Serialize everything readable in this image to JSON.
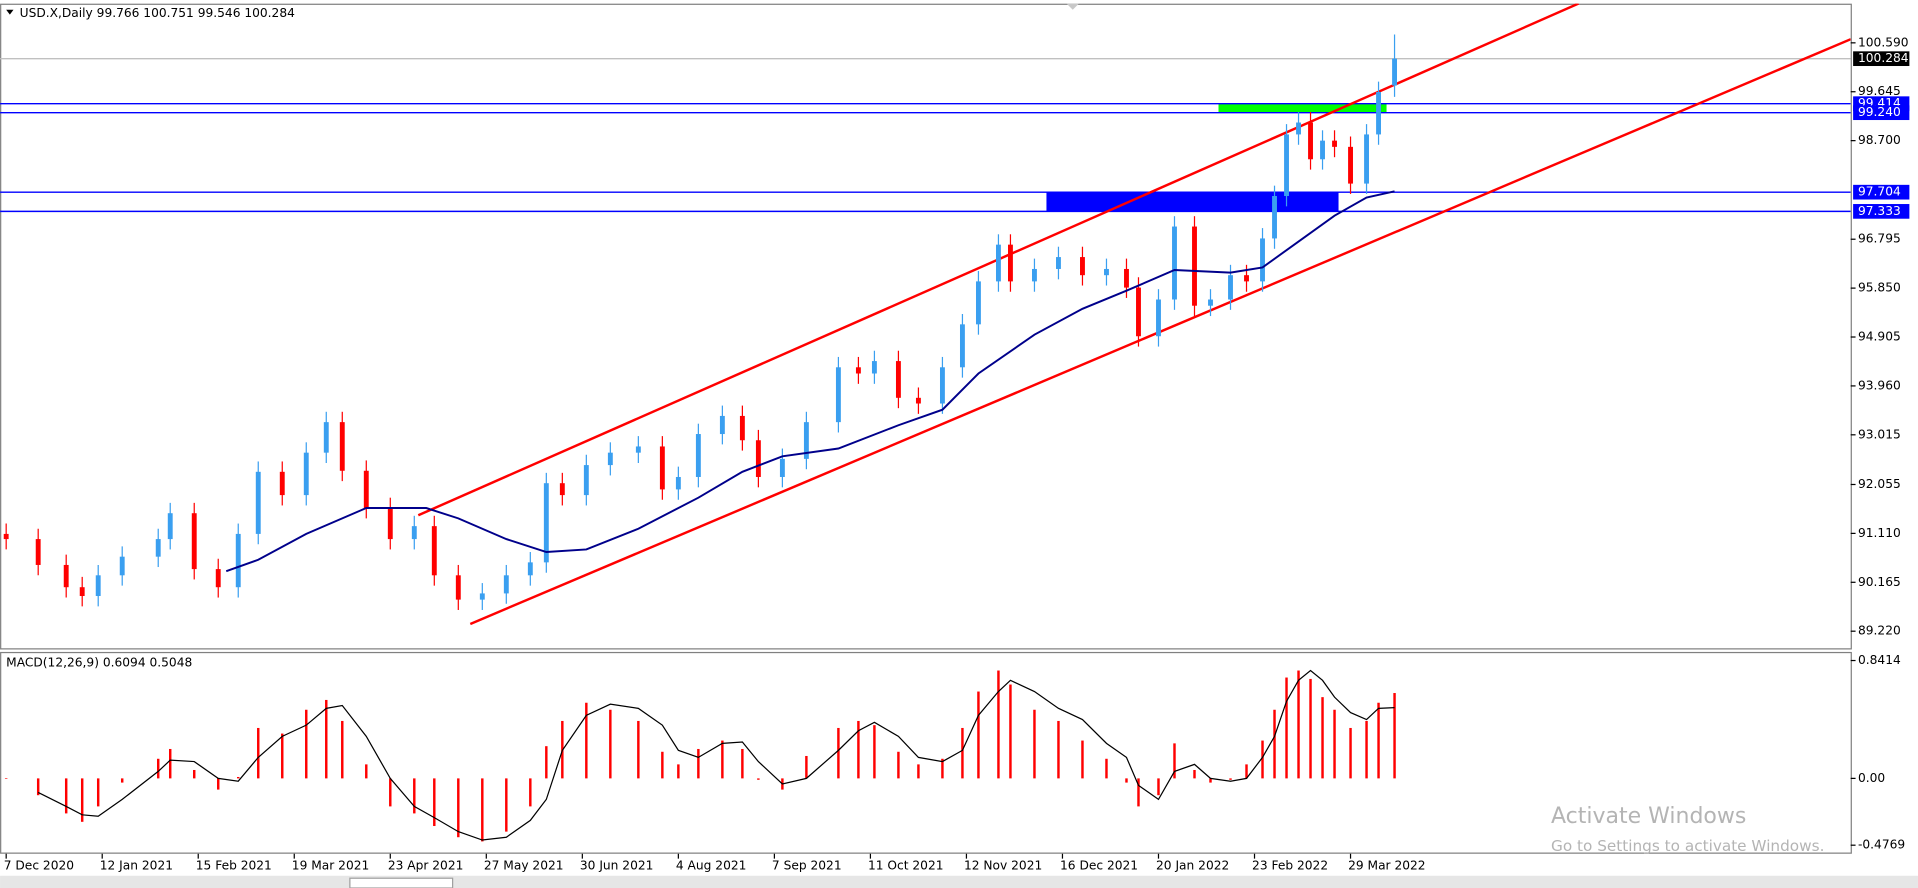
{
  "chart_data": [
    {
      "type": "candlestick",
      "title": "USD.X,Daily  99.766 100.751 99.546 100.284",
      "x": [
        0,
        8,
        15,
        19,
        23,
        29,
        38,
        41,
        47,
        53,
        58,
        63,
        69,
        75,
        80,
        84,
        90,
        96,
        102,
        107,
        113,
        119,
        125,
        131,
        135,
        139,
        145,
        151,
        158,
        164,
        168,
        173,
        179,
        184,
        188,
        194,
        200,
        208,
        213,
        217,
        223,
        228,
        234,
        239,
        243,
        248,
        251,
        257,
        263,
        269,
        275,
        280,
        283,
        288,
        292,
        297,
        301,
        306,
        310,
        314,
        317,
        320,
        323,
        326,
        329,
        332,
        336,
        340,
        343,
        347
      ],
      "open": [
        91.1,
        91.0,
        90.5,
        90.07,
        89.9,
        90.3,
        90.66,
        91.0,
        91.5,
        90.42,
        90.07,
        91.1,
        92.3,
        91.85,
        92.67,
        93.26,
        92.32,
        91.6,
        91.0,
        91.25,
        90.3,
        89.83,
        89.95,
        90.3,
        90.55,
        92.08,
        91.85,
        92.43,
        92.67,
        92.79,
        91.96,
        92.2,
        93.03,
        93.38,
        92.91,
        92.2,
        92.55,
        93.26,
        94.32,
        94.2,
        94.44,
        93.73,
        93.62,
        94.32,
        95.15,
        95.98,
        96.69,
        95.98,
        96.22,
        96.45,
        96.1,
        96.22,
        95.86,
        94.92,
        95.63,
        97.04,
        95.51,
        95.63,
        96.1,
        95.98,
        96.81,
        97.63,
        98.82,
        99.05,
        98.34,
        98.7,
        98.58,
        97.87,
        98.82,
        99.766
      ],
      "high": [
        91.3,
        91.2,
        90.7,
        90.27,
        90.5,
        90.86,
        91.2,
        91.7,
        91.7,
        90.62,
        91.3,
        92.5,
        92.5,
        92.87,
        93.46,
        93.46,
        92.52,
        91.8,
        91.45,
        91.45,
        90.5,
        90.15,
        90.5,
        90.75,
        92.28,
        92.28,
        92.63,
        92.87,
        92.99,
        92.99,
        92.4,
        93.23,
        93.58,
        93.58,
        93.11,
        92.75,
        93.46,
        94.52,
        94.52,
        94.64,
        94.64,
        93.93,
        94.52,
        95.35,
        96.18,
        96.89,
        96.89,
        96.42,
        96.65,
        96.65,
        96.42,
        96.42,
        96.06,
        95.83,
        97.24,
        97.24,
        95.83,
        96.3,
        96.3,
        97.01,
        97.83,
        99.02,
        99.25,
        99.25,
        98.9,
        98.9,
        98.78,
        99.02,
        99.84,
        100.751
      ],
      "low": [
        90.8,
        90.3,
        89.87,
        89.7,
        89.7,
        90.1,
        90.46,
        90.8,
        90.22,
        89.87,
        89.87,
        90.9,
        91.65,
        91.65,
        92.47,
        92.12,
        91.4,
        90.8,
        90.8,
        90.1,
        89.63,
        89.63,
        89.75,
        90.1,
        90.35,
        91.65,
        91.65,
        92.23,
        92.47,
        91.76,
        91.76,
        92.0,
        92.83,
        92.71,
        92.0,
        92.0,
        92.35,
        93.06,
        94.0,
        94.0,
        93.53,
        93.42,
        93.42,
        94.12,
        94.95,
        95.78,
        95.78,
        95.78,
        96.02,
        95.9,
        95.9,
        95.66,
        94.72,
        94.72,
        95.43,
        95.31,
        95.31,
        95.43,
        95.78,
        95.78,
        96.61,
        97.43,
        98.62,
        98.14,
        98.14,
        98.38,
        97.67,
        97.67,
        98.62,
        99.546
      ],
      "close": [
        91.0,
        90.5,
        90.07,
        89.9,
        90.3,
        90.66,
        91.0,
        91.5,
        90.42,
        90.07,
        91.1,
        92.3,
        91.85,
        92.67,
        93.26,
        92.32,
        91.6,
        91.0,
        91.25,
        90.3,
        89.83,
        89.95,
        90.3,
        90.55,
        92.08,
        91.85,
        92.43,
        92.67,
        92.79,
        91.96,
        92.2,
        93.03,
        93.38,
        92.91,
        92.2,
        92.55,
        93.26,
        94.32,
        94.2,
        94.44,
        93.73,
        93.62,
        94.32,
        95.15,
        95.98,
        96.69,
        95.98,
        96.22,
        96.45,
        96.1,
        96.22,
        95.86,
        94.92,
        95.63,
        97.04,
        95.51,
        95.63,
        96.1,
        95.98,
        96.81,
        97.63,
        98.82,
        99.05,
        98.34,
        98.7,
        98.58,
        97.87,
        98.82,
        99.64,
        100.284
      ],
      "up_color": "#3a9ff0",
      "down_color": "#ff0000",
      "ma": {
        "x": [
          55,
          63,
          75,
          90,
          105,
          113,
          125,
          135,
          145,
          158,
          173,
          184,
          194,
          208,
          223,
          234,
          243,
          257,
          269,
          280,
          292,
          306,
          314,
          323,
          332,
          340,
          347
        ],
        "values": [
          90.38,
          90.6,
          91.1,
          91.6,
          91.6,
          91.4,
          91.0,
          90.75,
          90.8,
          91.2,
          91.8,
          92.3,
          92.6,
          92.75,
          93.2,
          93.5,
          94.2,
          94.95,
          95.45,
          95.8,
          96.2,
          96.15,
          96.25,
          96.75,
          97.25,
          97.6,
          97.72
        ],
        "color": "#00008b"
      },
      "trendlines": [
        {
          "x": [
            103,
            393
          ],
          "y": [
            91.46,
            101.35
          ],
          "color": "#ff0000"
        },
        {
          "x": [
            116,
            461
          ],
          "y": [
            89.36,
            100.66
          ],
          "color": "#ff0000"
        }
      ],
      "zones": [
        {
          "x": [
            303,
            345
          ],
          "y": [
            99.24,
            99.414
          ],
          "color": "#00ff00"
        },
        {
          "x": [
            260,
            333
          ],
          "y": [
            97.333,
            97.704
          ],
          "color": "#0000ff"
        }
      ],
      "price_lines": [
        {
          "value": 100.284,
          "line_color": "#c0c0c0",
          "label_color": "#000000"
        },
        {
          "value": 99.414,
          "line_color": "#0000ff",
          "label_color": "#0000ff"
        },
        {
          "value": 99.24,
          "label": "99.240",
          "line_color": "#0000ff",
          "label_color": "#0000ff"
        },
        {
          "value": 97.704,
          "line_color": "#0000ff",
          "label_color": "#0000ff"
        },
        {
          "value": 97.333,
          "line_color": "#0000ff",
          "label_color": "#0000ff"
        }
      ],
      "xlim": [
        -1.53,
        461
      ],
      "ylim": [
        88.89,
        101.347
      ],
      "yticks": [
        {
          "value": 100.59,
          "label": "100.590"
        },
        99.645,
        {
          "value": 98.7,
          "label": "98.700"
        },
        96.795,
        {
          "value": 95.85,
          "label": "95.850"
        },
        94.905,
        {
          "value": 93.96,
          "label": "93.960"
        },
        93.015,
        92.055,
        {
          "value": 91.11,
          "label": "91.110"
        },
        90.165,
        {
          "value": 89.22,
          "label": "89.220"
        }
      ],
      "xticks": [
        {
          "value": 0,
          "label": "7 Dec 2020"
        },
        {
          "value": 24,
          "label": "12 Jan 2021"
        },
        {
          "value": 48,
          "label": "15 Feb 2021"
        },
        {
          "value": 72,
          "label": "19 Mar 2021"
        },
        {
          "value": 96,
          "label": "23 Apr 2021"
        },
        {
          "value": 120,
          "label": "27 May 2021"
        },
        {
          "value": 144,
          "label": "30 Jun 2021"
        },
        {
          "value": 168,
          "label": "4 Aug 2021"
        },
        {
          "value": 192,
          "label": "7 Sep 2021"
        },
        {
          "value": 216,
          "label": "11 Oct 2021"
        },
        {
          "value": 240,
          "label": "12 Nov 2021"
        },
        {
          "value": 264,
          "label": "16 Dec 2021"
        },
        {
          "value": 288,
          "label": "20 Jan 2022"
        },
        {
          "value": 312,
          "label": "23 Feb 2022"
        },
        {
          "value": 336,
          "label": "29 Mar 2022"
        }
      ]
    },
    {
      "type": "macd",
      "title": "MACD(12,26,9) 0.6094 0.5048",
      "x": [
        0,
        8,
        15,
        19,
        23,
        29,
        38,
        41,
        47,
        53,
        58,
        63,
        69,
        75,
        80,
        84,
        90,
        96,
        102,
        107,
        113,
        119,
        125,
        131,
        135,
        139,
        145,
        151,
        158,
        164,
        168,
        173,
        179,
        184,
        188,
        194,
        200,
        208,
        213,
        217,
        223,
        228,
        234,
        239,
        243,
        248,
        251,
        257,
        263,
        269,
        275,
        280,
        283,
        288,
        292,
        297,
        301,
        306,
        310,
        314,
        317,
        320,
        323,
        326,
        329,
        332,
        336,
        340,
        343,
        347
      ],
      "histogram": {
        "color": "#ff0000",
        "values": [
          0,
          -0.12,
          -0.25,
          -0.31,
          -0.2,
          -0.03,
          0.14,
          0.21,
          0.06,
          -0.08,
          0.01,
          0.36,
          0.32,
          0.49,
          0.56,
          0.41,
          0.1,
          -0.2,
          -0.25,
          -0.34,
          -0.42,
          -0.45,
          -0.38,
          -0.2,
          0.23,
          0.41,
          0.54,
          0.49,
          0.41,
          0.19,
          0.1,
          0.21,
          0.27,
          0.21,
          -0.01,
          -0.08,
          0.16,
          0.36,
          0.41,
          0.38,
          0.19,
          0.1,
          0.14,
          0.36,
          0.62,
          0.77,
          0.67,
          0.49,
          0.41,
          0.27,
          0.14,
          -0.03,
          -0.2,
          -0.12,
          0.25,
          0.06,
          -0.03,
          -0.01,
          0.1,
          0.27,
          0.49,
          0.72,
          0.77,
          0.71,
          0.58,
          0.49,
          0.36,
          0.41,
          0.54,
          0.6094
        ]
      },
      "signal": {
        "color": "#000000",
        "values": [
          null,
          -0.1,
          -0.2,
          -0.26,
          -0.27,
          -0.15,
          0.05,
          0.13,
          0.12,
          0.0,
          -0.02,
          0.15,
          0.3,
          0.38,
          0.5,
          0.52,
          0.3,
          0.0,
          -0.2,
          -0.28,
          -0.38,
          -0.44,
          -0.42,
          -0.3,
          -0.15,
          0.2,
          0.45,
          0.53,
          0.5,
          0.38,
          0.2,
          0.15,
          0.25,
          0.26,
          0.12,
          -0.04,
          0.0,
          0.2,
          0.34,
          0.4,
          0.3,
          0.15,
          0.12,
          0.2,
          0.45,
          0.62,
          0.7,
          0.62,
          0.5,
          0.42,
          0.25,
          0.15,
          -0.05,
          -0.15,
          0.05,
          0.1,
          0.0,
          -0.02,
          0.0,
          0.15,
          0.3,
          0.55,
          0.7,
          0.77,
          0.7,
          0.58,
          0.47,
          0.42,
          0.5,
          0.5048
        ]
      },
      "xlim": [
        -1.53,
        461
      ],
      "ylim": [
        -0.538,
        0.894
      ],
      "yticks": [
        0.8414,
        {
          "value": 0,
          "label": "0.00"
        },
        -0.4769
      ]
    }
  ],
  "watermark": {
    "title": "Activate Windows",
    "subtitle": "Go to Settings to activate Windows."
  }
}
